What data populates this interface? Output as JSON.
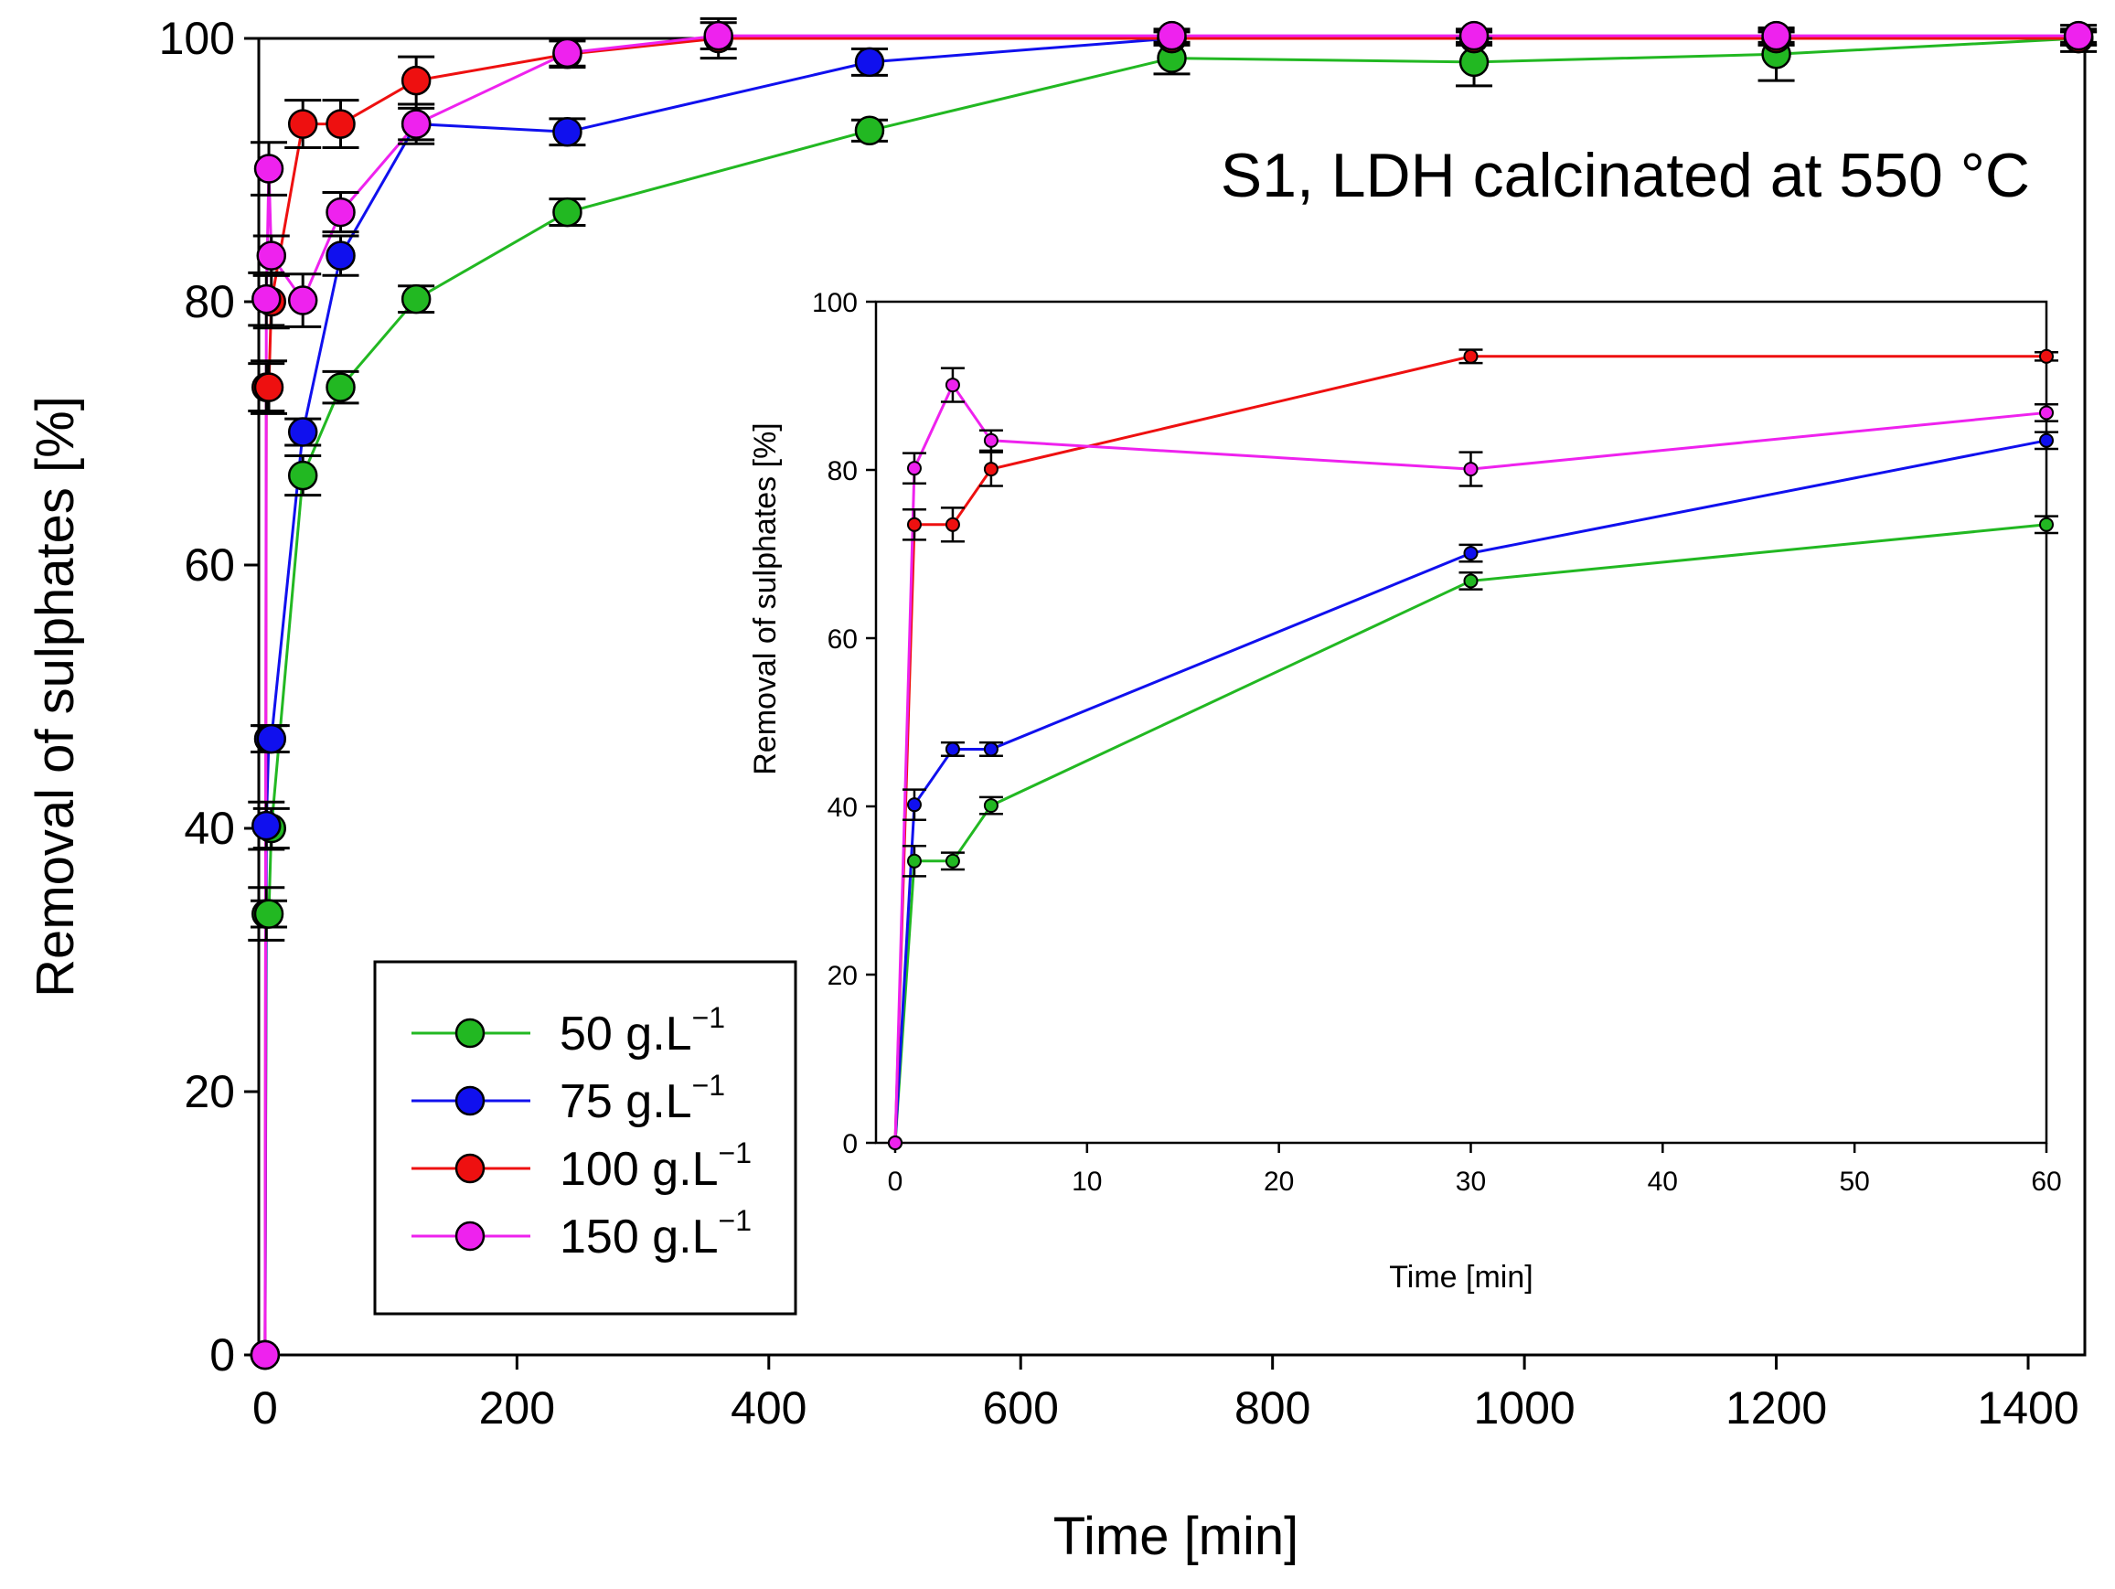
{
  "chart_data": [
    {
      "id": "main",
      "type": "line",
      "title": "",
      "xlabel": "Time [min]",
      "ylabel": "Removal of sulphates [%]",
      "xlim": [
        -5,
        1445
      ],
      "ylim": [
        0,
        100
      ],
      "xticks": [
        0,
        200,
        400,
        600,
        800,
        1000,
        1200,
        1400
      ],
      "yticks": [
        0,
        20,
        40,
        60,
        80,
        100
      ],
      "annotation": "S1, LDH calcinated at 550 °C",
      "legend": {
        "placement": "lower-left"
      },
      "series": [
        {
          "name": "50 g.L",
          "unit_superscript": "−1",
          "color": "#22b822",
          "x": [
            0,
            1,
            3,
            5,
            30,
            60,
            120,
            240,
            480,
            720,
            960,
            1200,
            1440
          ],
          "y": [
            0,
            33.5,
            33.5,
            40,
            66.8,
            73.5,
            80.2,
            86.8,
            93,
            98.5,
            98.2,
            98.8,
            100
          ],
          "err": [
            0,
            2,
            1,
            1.5,
            1.5,
            1.2,
            1,
            1,
            0.8,
            1.2,
            1.8,
            2,
            1
          ]
        },
        {
          "name": "75 g.L",
          "unit_superscript": "−1",
          "color": "#1010ee",
          "x": [
            0,
            1,
            3,
            5,
            30,
            60,
            120,
            240,
            480,
            720,
            960,
            1200,
            1440
          ],
          "y": [
            0,
            40.2,
            46.8,
            46.8,
            70.1,
            83.5,
            93.5,
            92.9,
            98.2,
            100,
            100,
            100,
            100
          ],
          "err": [
            0,
            1.8,
            1,
            1,
            1,
            1.5,
            1.2,
            1,
            1,
            0.5,
            0.5,
            0.5,
            0.5
          ]
        },
        {
          "name": "100 g.L",
          "unit_superscript": "−1",
          "color": "#ee1010",
          "x": [
            0,
            1,
            3,
            5,
            30,
            60,
            120,
            240,
            360,
            720,
            960,
            1200,
            1440
          ],
          "y": [
            0,
            73.5,
            73.5,
            80,
            93.5,
            93.5,
            96.8,
            98.8,
            100,
            100,
            100,
            100,
            100
          ],
          "err": [
            0,
            1.8,
            2,
            2,
            1.8,
            1.8,
            1.8,
            1,
            1.5,
            0.5,
            0.5,
            0.5,
            0.5
          ]
        },
        {
          "name": "150 g.L",
          "unit_superscript": "−1",
          "color": "#ee22ee",
          "x": [
            0,
            1,
            3,
            5,
            30,
            60,
            120,
            240,
            360,
            720,
            960,
            1200,
            1440
          ],
          "y": [
            0,
            80.2,
            90.1,
            83.5,
            80.1,
            86.8,
            93.5,
            98.9,
            100.2,
            100.2,
            100.2,
            100.2,
            100.2
          ],
          "err": [
            0,
            2,
            2,
            1.5,
            2,
            1.5,
            1.5,
            1,
            1,
            0.5,
            0.5,
            0.5,
            0.5
          ]
        }
      ]
    },
    {
      "id": "inset",
      "type": "line",
      "title": "",
      "xlabel": "Time [min]",
      "ylabel": "Removal of sulphates [%]",
      "xlim": [
        -1,
        60
      ],
      "ylim": [
        0,
        100
      ],
      "xticks": [
        0,
        10,
        20,
        30,
        40,
        50,
        60
      ],
      "yticks": [
        0,
        20,
        40,
        60,
        80,
        100
      ],
      "series": [
        {
          "name": "50 g.L",
          "color": "#22b822",
          "x": [
            0,
            1,
            3,
            5,
            30,
            60
          ],
          "y": [
            0,
            33.5,
            33.5,
            40.1,
            66.8,
            73.5
          ],
          "err": [
            0,
            1.8,
            1,
            1,
            1,
            1
          ]
        },
        {
          "name": "75 g.L",
          "color": "#1010ee",
          "x": [
            0,
            1,
            3,
            5,
            30,
            60
          ],
          "y": [
            0,
            40.2,
            46.8,
            46.8,
            70.1,
            83.5
          ],
          "err": [
            0,
            1.8,
            0.8,
            0.8,
            1,
            1
          ]
        },
        {
          "name": "100 g.L",
          "color": "#ee1010",
          "x": [
            0,
            1,
            3,
            5,
            30,
            60
          ],
          "y": [
            0,
            73.5,
            73.5,
            80.1,
            93.5,
            93.5
          ],
          "err": [
            0,
            1.8,
            2,
            2,
            0.8,
            0.5
          ]
        },
        {
          "name": "150 g.L",
          "color": "#ee22ee",
          "x": [
            0,
            1,
            3,
            5,
            30,
            60
          ],
          "y": [
            0,
            80.2,
            90.1,
            83.5,
            80.1,
            86.8
          ],
          "err": [
            0,
            1.8,
            2,
            1.2,
            2,
            1
          ]
        }
      ]
    }
  ]
}
